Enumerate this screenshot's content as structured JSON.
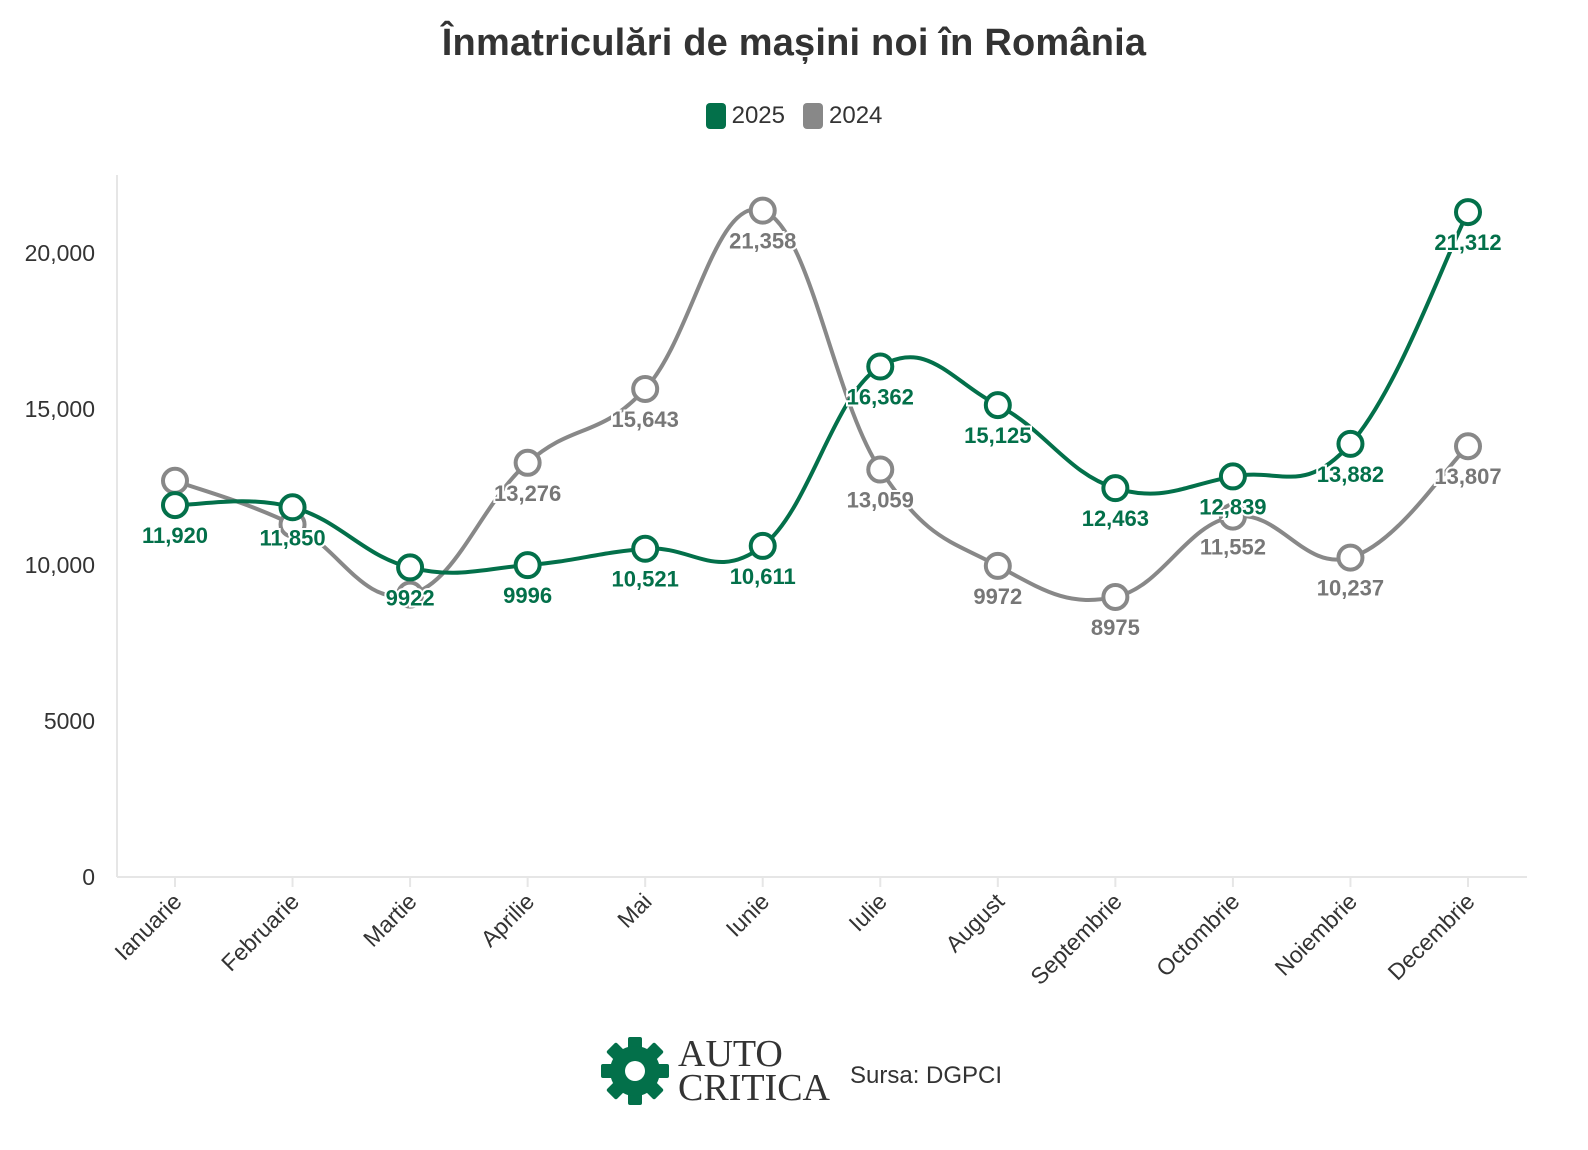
{
  "colors": {
    "s2025": "#03704A",
    "s2024": "#888888",
    "axis": "#e6e6e6",
    "text": "#333333",
    "label_gray": "#777777"
  },
  "chart_data": {
    "type": "line",
    "title": "Înmatriculări de mașini noi în România",
    "categories": [
      "Ianuarie",
      "Februarie",
      "Martie",
      "Aprilie",
      "Mai",
      "Iunie",
      "Iulie",
      "August",
      "Septembrie",
      "Octombrie",
      "Noiembrie",
      "Decembrie"
    ],
    "series": [
      {
        "name": "2025",
        "color": "#03704A",
        "values": [
          11920,
          11850,
          9922,
          9996,
          10521,
          10611,
          16362,
          15125,
          12463,
          12839,
          13882,
          21312
        ],
        "labels": [
          "11,920",
          "11,850",
          "9922",
          "9996",
          "10,521",
          "10,611",
          "16,362",
          "15,125",
          "12,463",
          "12,839",
          "13,882",
          "21,312"
        ]
      },
      {
        "name": "2024",
        "color": "#888888",
        "values": [
          12700,
          11300,
          9050,
          13276,
          15643,
          21358,
          13059,
          9972,
          8975,
          11552,
          10237,
          13807
        ],
        "labels": [
          "",
          "",
          "",
          "13,276",
          "15,643",
          "21,358",
          "13,059",
          "9972",
          "8975",
          "11,552",
          "10,237",
          "13,807"
        ]
      }
    ],
    "y_ticks": [
      0,
      5000,
      10000,
      15000,
      20000
    ],
    "y_tick_labels": [
      "0",
      "5000",
      "10,000",
      "15,000",
      "20,000"
    ],
    "ylim": [
      0,
      22500
    ],
    "xlabel": "",
    "ylabel": "",
    "grid": false,
    "legend": "top-center"
  },
  "footer": {
    "logo_line1": "AUTO",
    "logo_line2": "CRITICA",
    "source": "Sursa: DGPCI"
  }
}
